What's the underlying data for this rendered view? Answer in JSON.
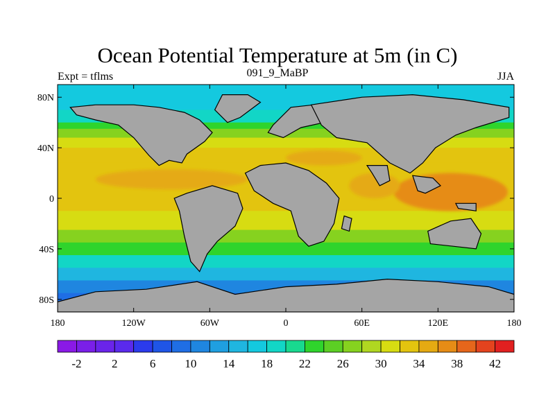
{
  "title": "Ocean Potential Temperature at 5m (in C)",
  "subtitle_left": "Expt = tflms",
  "subtitle_center": "091_9_MaBP",
  "subtitle_right": "JJA",
  "lon_ticks": [
    {
      "value": -180,
      "label": "180"
    },
    {
      "value": -120,
      "label": "120W"
    },
    {
      "value": -60,
      "label": "60W"
    },
    {
      "value": 0,
      "label": "0"
    },
    {
      "value": 60,
      "label": "60E"
    },
    {
      "value": 120,
      "label": "120E"
    },
    {
      "value": 180,
      "label": "180"
    }
  ],
  "lat_ticks": [
    {
      "value": 80,
      "label": "80N"
    },
    {
      "value": 40,
      "label": "40N"
    },
    {
      "value": 0,
      "label": "0"
    },
    {
      "value": -40,
      "label": "40S"
    },
    {
      "value": -80,
      "label": "80S"
    }
  ],
  "lon_range": [
    -180,
    180
  ],
  "lat_range": [
    -90,
    90
  ],
  "land_color": "#a5a5a5",
  "colorbar": {
    "min": -4,
    "max": 44,
    "step": 2,
    "labels": [
      {
        "value": -2,
        "label": "-2"
      },
      {
        "value": 2,
        "label": "2"
      },
      {
        "value": 6,
        "label": "6"
      },
      {
        "value": 10,
        "label": "10"
      },
      {
        "value": 14,
        "label": "14"
      },
      {
        "value": 18,
        "label": "18"
      },
      {
        "value": 22,
        "label": "22"
      },
      {
        "value": 26,
        "label": "26"
      },
      {
        "value": 30,
        "label": "30"
      },
      {
        "value": 34,
        "label": "34"
      },
      {
        "value": 38,
        "label": "38"
      },
      {
        "value": 42,
        "label": "42"
      }
    ],
    "colors": [
      "#8a19e6",
      "#7a1fe8",
      "#6a24ea",
      "#5a2aec",
      "#2b3bec",
      "#1f55e6",
      "#1f6ee4",
      "#1f86e0",
      "#1f9fe0",
      "#1fb6e0",
      "#14c9df",
      "#12d6c6",
      "#18d98f",
      "#2fd42c",
      "#5ccf24",
      "#86d21f",
      "#b0d721",
      "#d7dc12",
      "#e3c40f",
      "#e5aa12",
      "#e68c16",
      "#e5661b",
      "#e4431e",
      "#e12020"
    ]
  },
  "ocean_temperature_bands": [
    {
      "lat_min": 70,
      "lat_max": 90,
      "value": 16
    },
    {
      "lat_min": 60,
      "lat_max": 70,
      "value": 18
    },
    {
      "lat_min": 55,
      "lat_max": 60,
      "value": 22
    },
    {
      "lat_min": 48,
      "lat_max": 55,
      "value": 26
    },
    {
      "lat_min": 40,
      "lat_max": 48,
      "value": 30
    },
    {
      "lat_min": 28,
      "lat_max": 40,
      "value": 32
    },
    {
      "lat_min": -10,
      "lat_max": 28,
      "value": 32
    },
    {
      "lat_min": -25,
      "lat_max": -10,
      "value": 30
    },
    {
      "lat_min": -35,
      "lat_max": -25,
      "value": 26
    },
    {
      "lat_min": -45,
      "lat_max": -35,
      "value": 22
    },
    {
      "lat_min": -55,
      "lat_max": -45,
      "value": 18
    },
    {
      "lat_min": -65,
      "lat_max": -55,
      "value": 14
    },
    {
      "lat_min": -75,
      "lat_max": -65,
      "value": 10
    },
    {
      "lat_min": -90,
      "lat_max": -75,
      "value": 8
    }
  ],
  "ocean_warm_patches": [
    {
      "lon": -90,
      "lat": 15,
      "rlon": 60,
      "rlat": 8,
      "value": 34
    },
    {
      "lon": 130,
      "lat": 5,
      "rlon": 45,
      "rlat": 15,
      "value": 36
    },
    {
      "lon": 70,
      "lat": 10,
      "rlon": 20,
      "rlat": 10,
      "value": 34
    },
    {
      "lon": 30,
      "lat": 32,
      "rlon": 30,
      "rlat": 6,
      "value": 34
    }
  ],
  "land_masses": [
    {
      "name": "north-america",
      "points": [
        [
          -170,
          72
        ],
        [
          -150,
          74
        ],
        [
          -120,
          74
        ],
        [
          -100,
          72
        ],
        [
          -80,
          68
        ],
        [
          -68,
          62
        ],
        [
          -58,
          52
        ],
        [
          -64,
          45
        ],
        [
          -78,
          35
        ],
        [
          -82,
          28
        ],
        [
          -92,
          30
        ],
        [
          -100,
          26
        ],
        [
          -108,
          34
        ],
        [
          -120,
          48
        ],
        [
          -132,
          58
        ],
        [
          -150,
          62
        ],
        [
          -165,
          66
        ]
      ]
    },
    {
      "name": "greenland",
      "points": [
        [
          -50,
          82
        ],
        [
          -30,
          82
        ],
        [
          -20,
          76
        ],
        [
          -36,
          64
        ],
        [
          -46,
          60
        ],
        [
          -56,
          70
        ]
      ]
    },
    {
      "name": "south-america",
      "points": [
        [
          -88,
          0
        ],
        [
          -78,
          4
        ],
        [
          -58,
          10
        ],
        [
          -38,
          4
        ],
        [
          -34,
          -8
        ],
        [
          -40,
          -22
        ],
        [
          -54,
          -34
        ],
        [
          -62,
          -44
        ],
        [
          -68,
          -58
        ],
        [
          -75,
          -50
        ],
        [
          -80,
          -30
        ],
        [
          -84,
          -10
        ]
      ]
    },
    {
      "name": "africa",
      "points": [
        [
          -32,
          20
        ],
        [
          -20,
          26
        ],
        [
          0,
          28
        ],
        [
          18,
          22
        ],
        [
          32,
          12
        ],
        [
          42,
          0
        ],
        [
          38,
          -20
        ],
        [
          30,
          -34
        ],
        [
          18,
          -38
        ],
        [
          10,
          -30
        ],
        [
          4,
          -10
        ],
        [
          -10,
          -4
        ],
        [
          -25,
          6
        ]
      ]
    },
    {
      "name": "europe",
      "points": [
        [
          -10,
          58
        ],
        [
          4,
          72
        ],
        [
          22,
          74
        ],
        [
          36,
          68
        ],
        [
          30,
          60
        ],
        [
          12,
          56
        ],
        [
          -2,
          48
        ],
        [
          -14,
          52
        ]
      ]
    },
    {
      "name": "asia",
      "points": [
        [
          20,
          74
        ],
        [
          60,
          80
        ],
        [
          100,
          82
        ],
        [
          140,
          78
        ],
        [
          176,
          72
        ],
        [
          176,
          64
        ],
        [
          150,
          56
        ],
        [
          134,
          50
        ],
        [
          118,
          40
        ],
        [
          108,
          28
        ],
        [
          98,
          20
        ],
        [
          82,
          28
        ],
        [
          64,
          44
        ],
        [
          40,
          48
        ],
        [
          28,
          58
        ]
      ]
    },
    {
      "name": "southeast-asia",
      "points": [
        [
          100,
          18
        ],
        [
          116,
          16
        ],
        [
          122,
          10
        ],
        [
          110,
          4
        ],
        [
          104,
          6
        ]
      ]
    },
    {
      "name": "india",
      "points": [
        [
          64,
          26
        ],
        [
          80,
          26
        ],
        [
          82,
          14
        ],
        [
          74,
          10
        ],
        [
          68,
          20
        ]
      ]
    },
    {
      "name": "madagascar",
      "points": [
        [
          46,
          -14
        ],
        [
          52,
          -16
        ],
        [
          50,
          -26
        ],
        [
          44,
          -24
        ]
      ]
    },
    {
      "name": "australia",
      "points": [
        [
          112,
          -26
        ],
        [
          130,
          -18
        ],
        [
          146,
          -16
        ],
        [
          154,
          -28
        ],
        [
          150,
          -40
        ],
        [
          132,
          -38
        ],
        [
          114,
          -36
        ]
      ]
    },
    {
      "name": "new-guinea",
      "points": [
        [
          134,
          -4
        ],
        [
          150,
          -4
        ],
        [
          150,
          -10
        ],
        [
          136,
          -8
        ]
      ]
    },
    {
      "name": "antarctica",
      "points": [
        [
          -180,
          -82
        ],
        [
          -150,
          -74
        ],
        [
          -110,
          -72
        ],
        [
          -70,
          -66
        ],
        [
          -40,
          -76
        ],
        [
          0,
          -70
        ],
        [
          40,
          -68
        ],
        [
          80,
          -64
        ],
        [
          120,
          -66
        ],
        [
          160,
          -70
        ],
        [
          180,
          -76
        ],
        [
          180,
          -90
        ],
        [
          -180,
          -90
        ]
      ]
    }
  ]
}
